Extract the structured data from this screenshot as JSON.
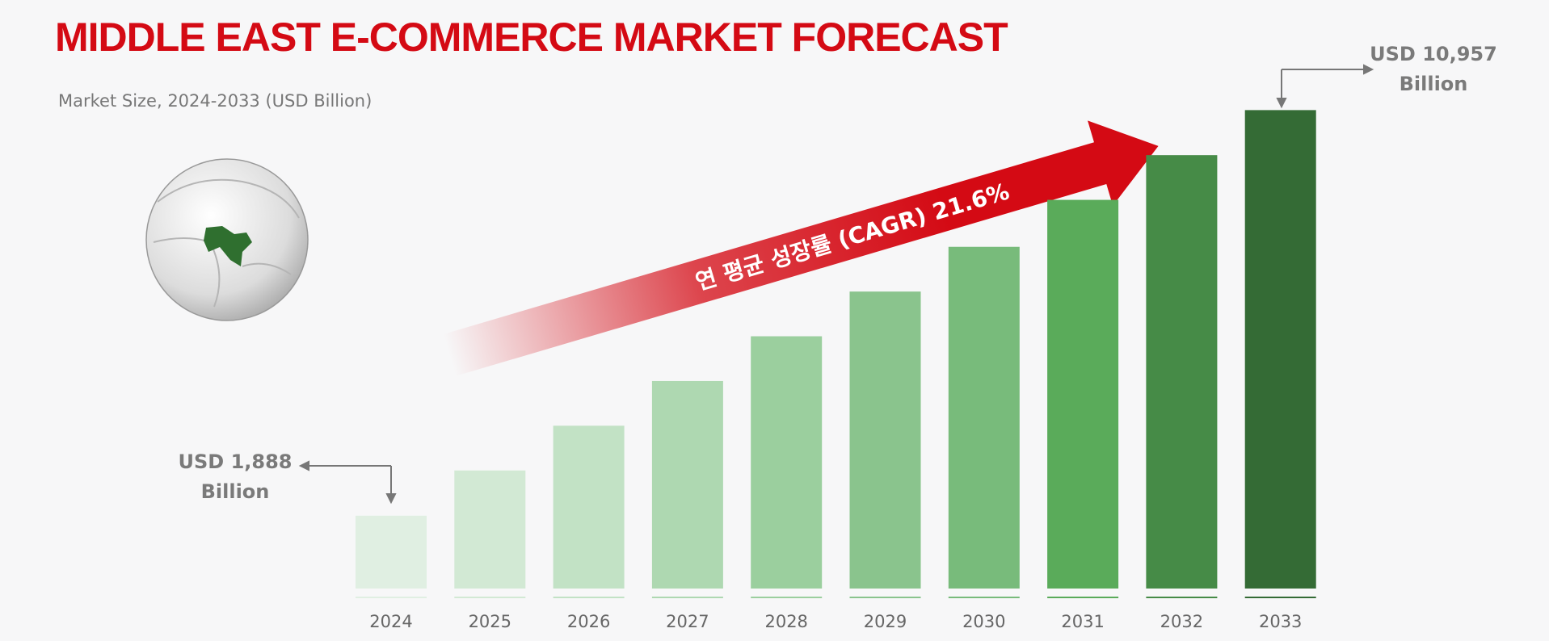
{
  "chart_data": {
    "type": "bar",
    "title": "MIDDLE EAST E-COMMERCE MARKET FORECAST",
    "subtitle": "Market Size, 2024-2033 (USD Billion)",
    "annotation": "연 평균 성장률 (CAGR) 21.6%",
    "categories": [
      "2024",
      "2025",
      "2026",
      "2027",
      "2028",
      "2029",
      "2030",
      "2031",
      "2032",
      "2033"
    ],
    "values": [
      1888,
      2900,
      3900,
      4900,
      5900,
      6900,
      7900,
      8950,
      9950,
      10957
    ],
    "value_labels": [
      "USD 1,888 Billion",
      null,
      null,
      null,
      null,
      null,
      null,
      null,
      null,
      "USD 10,957 Billion"
    ],
    "colors": [
      "#e0efe2",
      "#d2e9d4",
      "#c2e2c5",
      "#aed8b1",
      "#9bcf9e",
      "#8ac48d",
      "#78bb7b",
      "#5aab5a",
      "#468b47",
      "#346b35"
    ],
    "ylim": [
      260,
      11000
    ]
  }
}
